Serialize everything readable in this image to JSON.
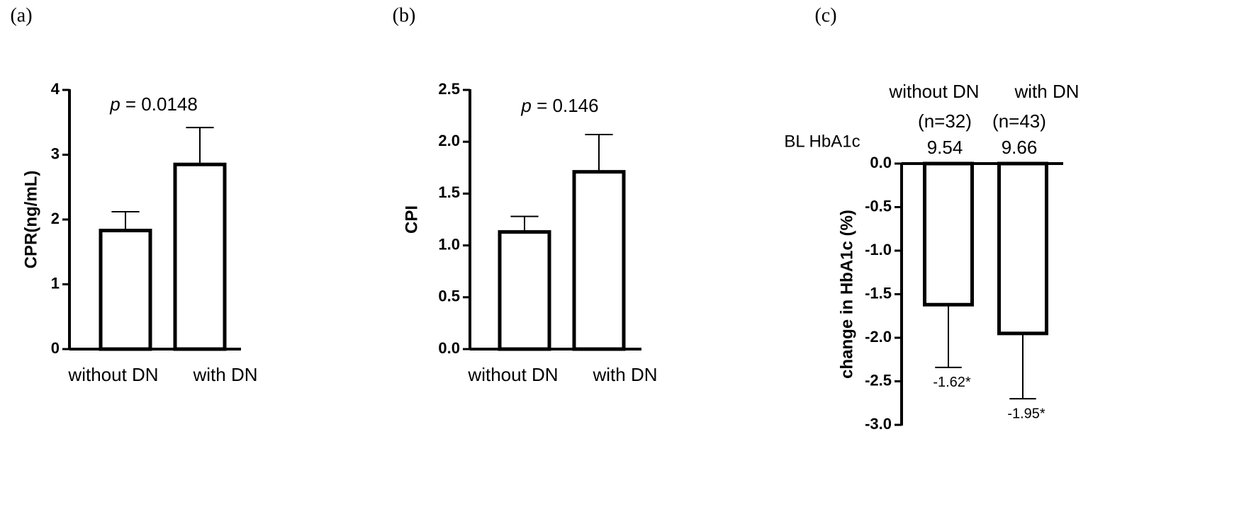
{
  "chart_data": [
    {
      "type": "bar",
      "panel_label": "(a)",
      "ylabel": "CPR(ng/mL)",
      "annotation": {
        "italic": "p",
        "text": "= 0.0148"
      },
      "categories": [
        "without DN",
        "with DN"
      ],
      "series": [
        {
          "values": [
            1.83,
            2.85
          ],
          "errors": [
            0.29,
            0.57
          ],
          "color": "#ffffff",
          "edgecolor": "#000000"
        }
      ],
      "ylim": [
        0,
        4
      ],
      "yticks": [
        0,
        1,
        2,
        3,
        4
      ]
    },
    {
      "type": "bar",
      "panel_label": "(b)",
      "ylabel": "CPI",
      "annotation": {
        "italic": "p",
        "text": "= 0.146"
      },
      "categories": [
        "without DN",
        "with DN"
      ],
      "series": [
        {
          "values": [
            1.13,
            1.71
          ],
          "errors": [
            0.15,
            0.36
          ],
          "color": "#ffffff",
          "edgecolor": "#000000"
        }
      ],
      "ylim": [
        0,
        2.5
      ],
      "yticks": [
        {
          "value": 0,
          "label": "0.0"
        },
        0.5,
        {
          "value": 1,
          "label": "1.0"
        },
        1.5,
        {
          "value": 2,
          "label": "2.0"
        },
        2.5
      ]
    },
    {
      "type": "bar",
      "panel_label": "(c)",
      "ylabel": "change in HbA1c (%)",
      "xlabels_position": "top",
      "categories": [
        "without DN",
        "with DN"
      ],
      "n_labels": [
        "(n=32)",
        "(n=43)"
      ],
      "baseline_label": "BL HbA1c",
      "baseline_values": [
        9.54,
        9.66
      ],
      "series": [
        {
          "values": [
            -1.62,
            -1.95
          ],
          "value_labels": [
            "-1.62*",
            "-1.95*"
          ],
          "errors": [
            0.72,
            0.75
          ],
          "color": "#ffffff",
          "edgecolor": "#000000"
        }
      ],
      "ylim": [
        -3,
        0
      ],
      "yticks": [
        {
          "value": 0,
          "label": "0.0"
        },
        -0.5,
        {
          "value": -1,
          "label": "-1.0"
        },
        -1.5,
        {
          "value": -2,
          "label": "-2.0"
        },
        -2.5,
        {
          "value": -3,
          "label": "-3.0"
        }
      ]
    }
  ]
}
